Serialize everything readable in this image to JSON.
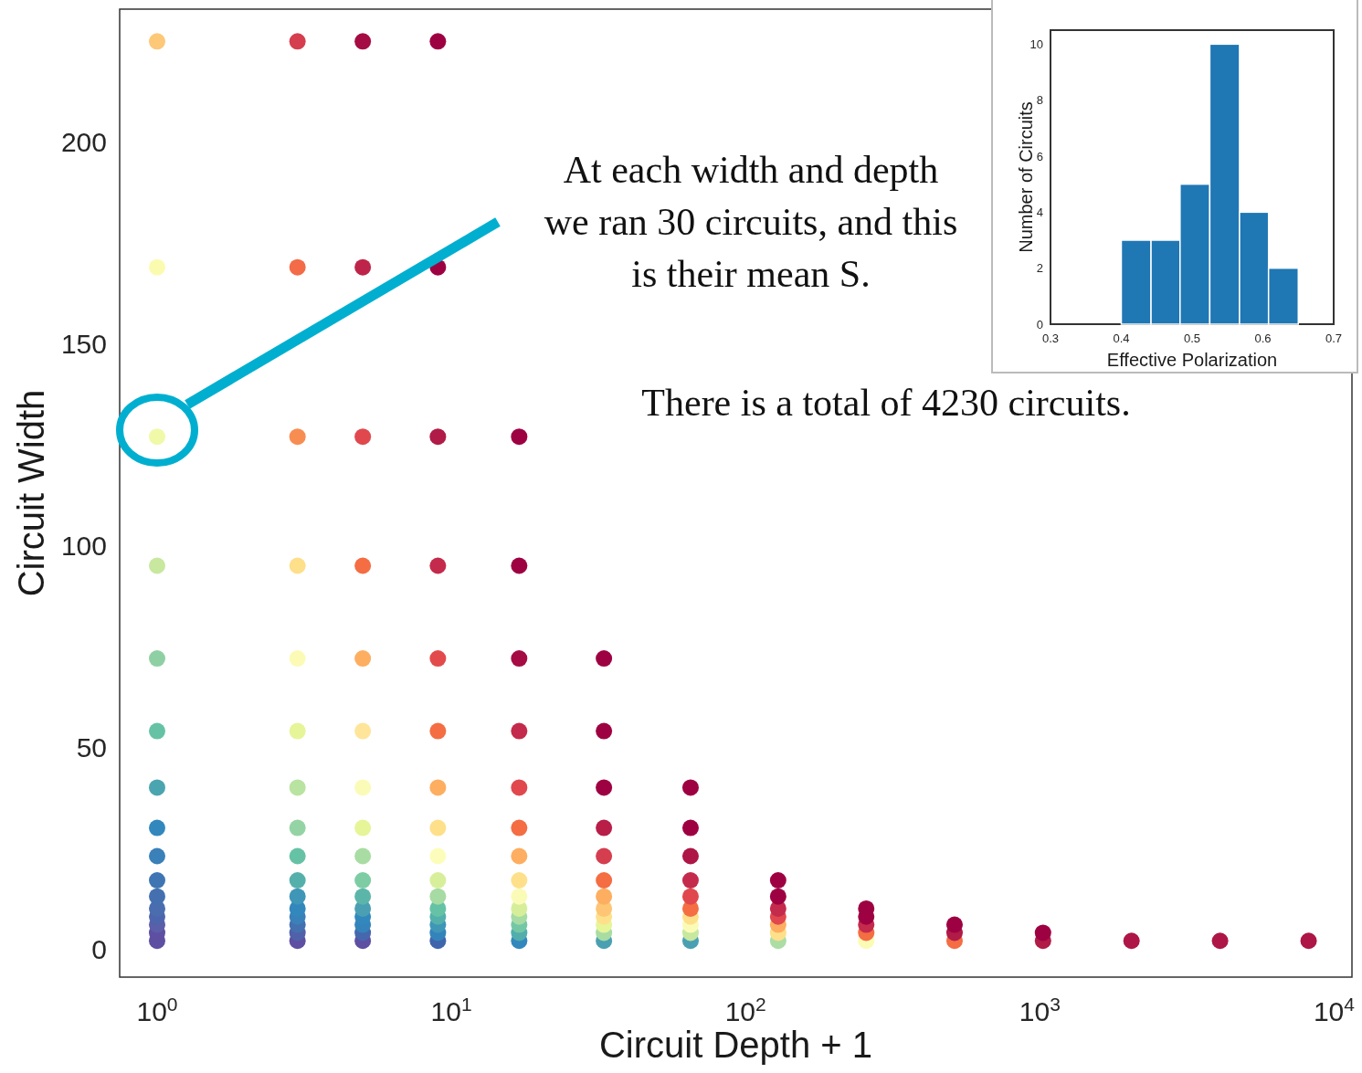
{
  "chart_data": [
    {
      "type": "scatter",
      "xlabel": "Circuit Depth + 1",
      "ylabel": "Circuit Width",
      "log": "x",
      "marker": "circle",
      "xlim": [
        0.746,
        11500
      ],
      "xticks": [
        {
          "value": 1,
          "label": "10$^{0}$"
        },
        {
          "value": 10,
          "label": "10$^{1}$"
        },
        {
          "value": 100,
          "label": "10$^{2}$"
        },
        {
          "value": 1000,
          "label": "10$^{3}$"
        },
        {
          "value": 10000,
          "label": "10$^{4}$"
        }
      ],
      "ylim": [
        -7,
        233
      ],
      "yticks": [
        0,
        50,
        100,
        150,
        200
      ],
      "annotations": [
        "At each width and depth\nwe ran 30 circuits, and this\nis their mean S.",
        "There is a total of 4230 circuits."
      ],
      "series": [
        {
          "x": [
            1,
            1,
            1,
            1,
            1,
            1,
            1,
            1,
            1,
            1,
            1,
            1,
            1,
            1,
            1,
            1
          ],
          "values": [
            2,
            4,
            6,
            8,
            10,
            13,
            17,
            23,
            30,
            40,
            54,
            72,
            95,
            127,
            169,
            225
          ],
          "colors": [
            "#5e4fa2",
            "#5e4fa2",
            "#5b5ea8",
            "#4d65ac",
            "#4a6db0",
            "#4470b0",
            "#3f75b3",
            "#3a80b9",
            "#3288bd",
            "#4ba5b0",
            "#66c2a5",
            "#8ed0a4",
            "#c7e89e",
            "#f0f9a8",
            "#fbfbb0",
            "#fdc877"
          ]
        },
        {
          "x": [
            3,
            3,
            3,
            3,
            3,
            3,
            3,
            3,
            3,
            3,
            3,
            3,
            3,
            3,
            3,
            3
          ],
          "values": [
            2,
            4,
            6,
            8,
            10,
            13,
            17,
            23,
            30,
            40,
            54,
            72,
            95,
            127,
            169,
            225
          ],
          "colors": [
            "#5e4fa2",
            "#5061a9",
            "#4470b0",
            "#3a80b9",
            "#3288bd",
            "#3f96b6",
            "#55b0ab",
            "#66c2a5",
            "#94d4a4",
            "#b9e3a0",
            "#e6f598",
            "#fcfbb6",
            "#fedf8a",
            "#f88d52",
            "#f36b47",
            "#d53e4f"
          ]
        },
        {
          "x": [
            5,
            5,
            5,
            5,
            5,
            5,
            5,
            5,
            5,
            5,
            5,
            5,
            5,
            5,
            5,
            5
          ],
          "values": [
            2,
            4,
            6,
            8,
            10,
            13,
            17,
            23,
            30,
            40,
            54,
            72,
            95,
            127,
            169,
            225
          ],
          "colors": [
            "#5e4fa2",
            "#4667ad",
            "#3484bb",
            "#3288bd",
            "#4aa0b2",
            "#5bb6a9",
            "#7dcca4",
            "#a8dca3",
            "#e6f598",
            "#fbfbb8",
            "#fee59a",
            "#fdae61",
            "#f46d43",
            "#e0484e",
            "#be2449",
            "#a50c43"
          ]
        },
        {
          "x": [
            9,
            9,
            9,
            9,
            9,
            9,
            9,
            9,
            9,
            9,
            9,
            9,
            9,
            9,
            9,
            9
          ],
          "values": [
            2,
            4,
            6,
            8,
            10,
            13,
            17,
            23,
            30,
            40,
            54,
            72,
            95,
            127,
            169,
            225
          ],
          "colors": [
            "#3f66ad",
            "#3484bb",
            "#3f96b6",
            "#54b0ab",
            "#66c2a5",
            "#a6dba3",
            "#d7ef9b",
            "#fdfdbb",
            "#fee08b",
            "#fdae61",
            "#f46d43",
            "#e34a4c",
            "#c42a4b",
            "#b01b47",
            "#9e0142",
            "#9e0142"
          ]
        },
        {
          "x": [
            17,
            17,
            17,
            17,
            17,
            17,
            17,
            17,
            17,
            17,
            17,
            17,
            17,
            17
          ],
          "values": [
            2,
            4,
            6,
            8,
            10,
            13,
            17,
            23,
            30,
            40,
            54,
            72,
            95,
            127
          ],
          "colors": [
            "#3288bd",
            "#52aeac",
            "#74c7a5",
            "#a6dba3",
            "#d6ee9a",
            "#fbfbb8",
            "#fee08b",
            "#fdae61",
            "#f46d43",
            "#e0484e",
            "#c42a4b",
            "#a50c43",
            "#9e0142",
            "#9e0142"
          ]
        },
        {
          "x": [
            33,
            33,
            33,
            33,
            33,
            33,
            33,
            33,
            33,
            33,
            33,
            33
          ],
          "values": [
            2,
            4,
            6,
            8,
            10,
            13,
            17,
            23,
            30,
            40,
            54,
            72
          ],
          "colors": [
            "#4aa0b2",
            "#a8dca3",
            "#e6f598",
            "#fee08b",
            "#fdc574",
            "#fdae61",
            "#f46d43",
            "#d53e4f",
            "#b81e48",
            "#9e0142",
            "#9e0142",
            "#9e0142"
          ]
        },
        {
          "x": [
            65,
            65,
            65,
            65,
            65,
            65,
            65,
            65,
            65,
            65
          ],
          "values": [
            2,
            4,
            6,
            8,
            10,
            13,
            17,
            23,
            30,
            40
          ],
          "colors": [
            "#4aa0b2",
            "#c7e89e",
            "#fbfbb8",
            "#fee08b",
            "#f46d43",
            "#e0484e",
            "#c42a4b",
            "#ad1646",
            "#9e0142",
            "#9e0142"
          ]
        },
        {
          "x": [
            129,
            129,
            129,
            129,
            129,
            129,
            129
          ],
          "values": [
            2,
            4,
            6,
            8,
            10,
            13,
            17
          ],
          "colors": [
            "#abdda4",
            "#fee08b",
            "#fdae61",
            "#e0484e",
            "#c42a4b",
            "#9e0142",
            "#9e0142"
          ]
        },
        {
          "x": [
            257,
            257,
            257,
            257,
            257
          ],
          "values": [
            2,
            4,
            6,
            8,
            10
          ],
          "colors": [
            "#fcfbb6",
            "#f46d43",
            "#c42a4b",
            "#9e0142",
            "#9e0142"
          ]
        },
        {
          "x": [
            513,
            513,
            513
          ],
          "values": [
            2,
            4,
            6
          ],
          "colors": [
            "#f46d43",
            "#b01b47",
            "#9e0142"
          ]
        },
        {
          "x": [
            1025,
            1025
          ],
          "values": [
            2,
            4
          ],
          "colors": [
            "#b01b47",
            "#9e0142"
          ]
        },
        {
          "x": [
            2049,
            4097,
            8193
          ],
          "values": [
            2,
            2,
            2
          ],
          "colors": [
            "#ad1646",
            "#ad1646",
            "#ad1646"
          ]
        }
      ]
    },
    {
      "type": "histogram",
      "xlabel": "Effective Polarization",
      "ylabel": "Number of Circuits",
      "bins": [
        0.4,
        0.442,
        0.483,
        0.525,
        0.567,
        0.608,
        0.65
      ],
      "values": [
        3,
        3,
        5,
        10,
        4,
        2
      ],
      "color": "#1f77b4",
      "xlim": [
        0.3,
        0.7
      ],
      "xticks": [
        0.3,
        0.4,
        0.5,
        0.6,
        0.7
      ],
      "ylim": [
        0,
        10.5
      ],
      "yticks": [
        0,
        2,
        4,
        6,
        8,
        10
      ]
    }
  ]
}
